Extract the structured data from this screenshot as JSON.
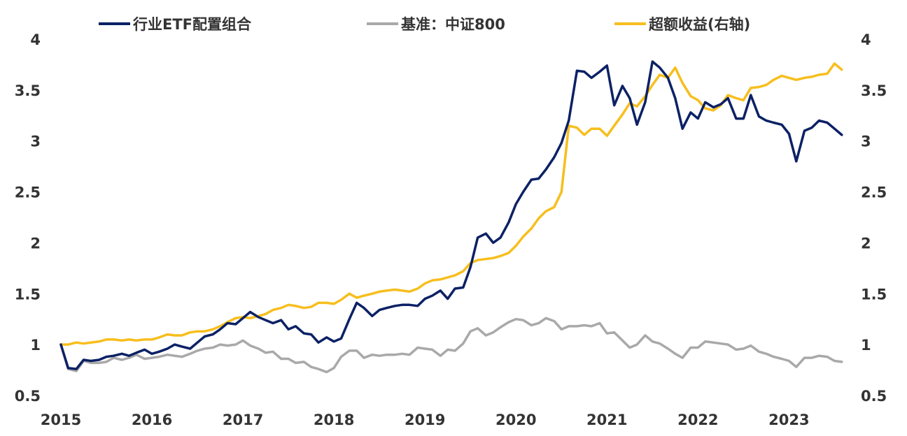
{
  "chart_data": {
    "type": "line",
    "title": "",
    "xlabel": "",
    "ylabel": "",
    "grid": false,
    "legend_position": "top",
    "x_ticks": [
      "2015",
      "2016",
      "2017",
      "2018",
      "2019",
      "2020",
      "2021",
      "2022",
      "2023"
    ],
    "x_range": [
      2015,
      2023.62
    ],
    "ylim_left": [
      0.5,
      4
    ],
    "ylim_right": [
      0.5,
      4
    ],
    "y_ticks_left": [
      "0.5",
      "1",
      "1.5",
      "2",
      "2.5",
      "3",
      "3.5",
      "4"
    ],
    "y_ticks_right": [
      "0.5",
      "1",
      "1.5",
      "2",
      "2.5",
      "3",
      "3.5",
      "4"
    ],
    "series": [
      {
        "name": "行业ETF配置组合",
        "axis": "left",
        "color": "#0c2165",
        "x": [
          2015.0,
          2015.08,
          2015.17,
          2015.25,
          2015.33,
          2015.42,
          2015.5,
          2015.58,
          2015.67,
          2015.75,
          2015.83,
          2015.92,
          2016.0,
          2016.08,
          2016.17,
          2016.25,
          2016.33,
          2016.42,
          2016.5,
          2016.58,
          2016.67,
          2016.75,
          2016.83,
          2016.92,
          2017.0,
          2017.08,
          2017.17,
          2017.25,
          2017.33,
          2017.42,
          2017.5,
          2017.58,
          2017.67,
          2017.75,
          2017.83,
          2017.92,
          2018.0,
          2018.08,
          2018.17,
          2018.25,
          2018.33,
          2018.42,
          2018.5,
          2018.58,
          2018.67,
          2018.75,
          2018.83,
          2018.92,
          2019.0,
          2019.08,
          2019.17,
          2019.25,
          2019.33,
          2019.42,
          2019.5,
          2019.58,
          2019.67,
          2019.75,
          2019.83,
          2019.92,
          2020.0,
          2020.08,
          2020.17,
          2020.25,
          2020.33,
          2020.42,
          2020.5,
          2020.58,
          2020.67,
          2020.75,
          2020.83,
          2020.92,
          2021.0,
          2021.08,
          2021.17,
          2021.25,
          2021.33,
          2021.42,
          2021.5,
          2021.58,
          2021.67,
          2021.75,
          2021.83,
          2021.92,
          2022.0,
          2022.08,
          2022.17,
          2022.25,
          2022.33,
          2022.42,
          2022.5,
          2022.58,
          2022.67,
          2022.75,
          2022.83,
          2022.92,
          2023.0,
          2023.08,
          2023.17,
          2023.25,
          2023.33,
          2023.42,
          2023.5,
          2023.58
        ],
        "values": [
          1.0,
          0.77,
          0.76,
          0.85,
          0.84,
          0.85,
          0.88,
          0.89,
          0.91,
          0.89,
          0.92,
          0.95,
          0.91,
          0.93,
          0.96,
          1.0,
          0.98,
          0.96,
          1.02,
          1.08,
          1.1,
          1.15,
          1.21,
          1.2,
          1.26,
          1.32,
          1.27,
          1.24,
          1.21,
          1.24,
          1.15,
          1.18,
          1.11,
          1.1,
          1.02,
          1.07,
          1.03,
          1.06,
          1.25,
          1.41,
          1.36,
          1.28,
          1.34,
          1.36,
          1.38,
          1.39,
          1.39,
          1.38,
          1.45,
          1.48,
          1.53,
          1.45,
          1.55,
          1.56,
          1.76,
          2.05,
          2.09,
          2.0,
          2.05,
          2.2,
          2.38,
          2.5,
          2.62,
          2.63,
          2.72,
          2.84,
          2.98,
          3.2,
          3.69,
          3.68,
          3.62,
          3.68,
          3.74,
          3.35,
          3.54,
          3.42,
          3.16,
          3.38,
          3.78,
          3.72,
          3.62,
          3.42,
          3.12,
          3.28,
          3.22,
          3.38,
          3.33,
          3.36,
          3.42,
          3.22,
          3.22,
          3.45,
          3.24,
          3.2,
          3.18,
          3.16,
          3.07,
          2.8,
          3.1,
          3.13,
          3.2,
          3.18,
          3.12,
          3.06
        ]
      },
      {
        "name": "基准：中证800",
        "axis": "left",
        "color": "#a9a9a9",
        "x": [
          2015.0,
          2015.08,
          2015.17,
          2015.25,
          2015.33,
          2015.42,
          2015.5,
          2015.58,
          2015.67,
          2015.75,
          2015.83,
          2015.92,
          2016.0,
          2016.08,
          2016.17,
          2016.25,
          2016.33,
          2016.42,
          2016.5,
          2016.58,
          2016.67,
          2016.75,
          2016.83,
          2016.92,
          2017.0,
          2017.08,
          2017.17,
          2017.25,
          2017.33,
          2017.42,
          2017.5,
          2017.58,
          2017.67,
          2017.75,
          2017.83,
          2017.92,
          2018.0,
          2018.08,
          2018.17,
          2018.25,
          2018.33,
          2018.42,
          2018.5,
          2018.58,
          2018.67,
          2018.75,
          2018.83,
          2018.92,
          2019.0,
          2019.08,
          2019.17,
          2019.25,
          2019.33,
          2019.42,
          2019.5,
          2019.58,
          2019.67,
          2019.75,
          2019.83,
          2019.92,
          2020.0,
          2020.08,
          2020.17,
          2020.25,
          2020.33,
          2020.42,
          2020.5,
          2020.58,
          2020.67,
          2020.75,
          2020.83,
          2020.92,
          2021.0,
          2021.08,
          2021.17,
          2021.25,
          2021.33,
          2021.42,
          2021.5,
          2021.58,
          2021.67,
          2021.75,
          2021.83,
          2021.92,
          2022.0,
          2022.08,
          2022.17,
          2022.25,
          2022.33,
          2022.42,
          2022.5,
          2022.58,
          2022.67,
          2022.75,
          2022.83,
          2022.92,
          2023.0,
          2023.08,
          2023.17,
          2023.25,
          2023.33,
          2023.42,
          2023.5,
          2023.58
        ],
        "values": [
          1.0,
          0.76,
          0.74,
          0.84,
          0.82,
          0.82,
          0.83,
          0.87,
          0.85,
          0.87,
          0.9,
          0.86,
          0.87,
          0.88,
          0.9,
          0.89,
          0.88,
          0.91,
          0.94,
          0.96,
          0.97,
          1.0,
          0.99,
          1.0,
          1.04,
          0.99,
          0.96,
          0.92,
          0.93,
          0.86,
          0.86,
          0.82,
          0.83,
          0.78,
          0.76,
          0.73,
          0.77,
          0.88,
          0.94,
          0.94,
          0.87,
          0.9,
          0.89,
          0.9,
          0.9,
          0.91,
          0.9,
          0.97,
          0.96,
          0.95,
          0.89,
          0.95,
          0.94,
          1.01,
          1.13,
          1.16,
          1.09,
          1.12,
          1.17,
          1.22,
          1.25,
          1.24,
          1.19,
          1.21,
          1.26,
          1.23,
          1.15,
          1.18,
          1.18,
          1.19,
          1.18,
          1.21,
          1.11,
          1.12,
          1.04,
          0.97,
          1.0,
          1.09,
          1.03,
          1.01,
          0.96,
          0.91,
          0.87,
          0.97,
          0.97,
          1.03,
          1.02,
          1.01,
          1.0,
          0.95,
          0.96,
          0.99,
          0.93,
          0.91,
          0.88,
          0.86,
          0.84,
          0.78,
          0.87,
          0.87,
          0.89,
          0.88,
          0.84,
          0.83
        ]
      },
      {
        "name": "超额收益(右轴)",
        "axis": "right",
        "color": "#f7be1d",
        "x": [
          2015.0,
          2015.08,
          2015.17,
          2015.25,
          2015.33,
          2015.42,
          2015.5,
          2015.58,
          2015.67,
          2015.75,
          2015.83,
          2015.92,
          2016.0,
          2016.08,
          2016.17,
          2016.25,
          2016.33,
          2016.42,
          2016.5,
          2016.58,
          2016.67,
          2016.75,
          2016.83,
          2016.92,
          2017.0,
          2017.08,
          2017.17,
          2017.25,
          2017.33,
          2017.42,
          2017.5,
          2017.58,
          2017.67,
          2017.75,
          2017.83,
          2017.92,
          2018.0,
          2018.08,
          2018.17,
          2018.25,
          2018.33,
          2018.42,
          2018.5,
          2018.58,
          2018.67,
          2018.75,
          2018.83,
          2018.92,
          2019.0,
          2019.08,
          2019.17,
          2019.25,
          2019.33,
          2019.42,
          2019.5,
          2019.58,
          2019.67,
          2019.75,
          2019.83,
          2019.92,
          2020.0,
          2020.08,
          2020.17,
          2020.25,
          2020.33,
          2020.42,
          2020.5,
          2020.58,
          2020.67,
          2020.75,
          2020.83,
          2020.92,
          2021.0,
          2021.08,
          2021.17,
          2021.25,
          2021.33,
          2021.42,
          2021.5,
          2021.58,
          2021.67,
          2021.75,
          2021.83,
          2021.92,
          2022.0,
          2022.08,
          2022.17,
          2022.25,
          2022.33,
          2022.42,
          2022.5,
          2022.58,
          2022.67,
          2022.75,
          2022.83,
          2022.92,
          2023.0,
          2023.08,
          2023.17,
          2023.25,
          2023.33,
          2023.42,
          2023.5,
          2023.58
        ],
        "values": [
          1.0,
          1.0,
          1.02,
          1.01,
          1.02,
          1.03,
          1.05,
          1.05,
          1.04,
          1.05,
          1.04,
          1.05,
          1.05,
          1.07,
          1.1,
          1.09,
          1.09,
          1.12,
          1.13,
          1.13,
          1.15,
          1.18,
          1.22,
          1.26,
          1.27,
          1.26,
          1.28,
          1.3,
          1.34,
          1.36,
          1.39,
          1.38,
          1.36,
          1.37,
          1.41,
          1.41,
          1.4,
          1.44,
          1.5,
          1.46,
          1.48,
          1.5,
          1.52,
          1.53,
          1.54,
          1.53,
          1.52,
          1.55,
          1.6,
          1.63,
          1.64,
          1.66,
          1.68,
          1.72,
          1.8,
          1.83,
          1.84,
          1.85,
          1.87,
          1.9,
          1.97,
          2.06,
          2.14,
          2.24,
          2.31,
          2.35,
          2.5,
          3.15,
          3.13,
          3.06,
          3.12,
          3.12,
          3.05,
          3.15,
          3.26,
          3.37,
          3.34,
          3.44,
          3.55,
          3.65,
          3.62,
          3.72,
          3.57,
          3.44,
          3.4,
          3.32,
          3.3,
          3.35,
          3.45,
          3.42,
          3.4,
          3.52,
          3.53,
          3.55,
          3.6,
          3.64,
          3.62,
          3.6,
          3.62,
          3.63,
          3.65,
          3.66,
          3.76,
          3.7
        ]
      }
    ]
  }
}
